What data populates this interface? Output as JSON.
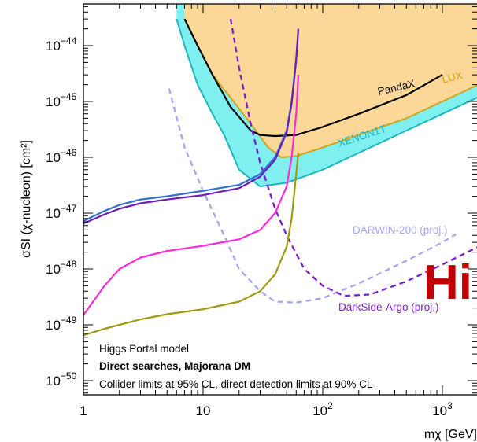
{
  "chart_data": {
    "type": "line",
    "title": "",
    "xlabel": "mχ [GeV]",
    "ylabel": "σSI (χ-nucleon) [cm²]",
    "xscale": "log",
    "yscale": "log",
    "xlim": [
      1,
      2000
    ],
    "ylim": [
      3e-51,
      3e-44
    ],
    "x_ticks": [
      {
        "value": 1,
        "base": "1",
        "exp": ""
      },
      {
        "value": 10,
        "base": "10",
        "exp": ""
      },
      {
        "value": 100,
        "base": "10",
        "exp": "2"
      },
      {
        "value": 1000,
        "base": "10",
        "exp": "3"
      }
    ],
    "y_ticks": [
      {
        "value": 1e-44,
        "base": "10",
        "exp": "−44"
      },
      {
        "value": 1e-45,
        "base": "10",
        "exp": "−45"
      },
      {
        "value": 1e-46,
        "base": "10",
        "exp": "−46"
      },
      {
        "value": 1e-47,
        "base": "10",
        "exp": "−47"
      },
      {
        "value": 1e-48,
        "base": "10",
        "exp": "−48"
      },
      {
        "value": 1e-49,
        "base": "10",
        "exp": "−49"
      },
      {
        "value": 1e-50,
        "base": "10",
        "exp": "−50"
      }
    ],
    "grid": false,
    "legend_lines": [
      "Higgs Portal model",
      "Direct searches, Majorana DM",
      "Collider limits at 95% CL, direct detection limits at 90% CL"
    ],
    "series": [
      {
        "name": "LUX",
        "style": "filled",
        "color": "#d4a21e",
        "fill": "#fbd898",
        "points": [
          [
            7,
            3e-44
          ],
          [
            9,
            1e-44
          ],
          [
            12,
            3e-45
          ],
          [
            18,
            1e-45
          ],
          [
            25,
            4e-46
          ],
          [
            35,
            1.5e-46
          ],
          [
            45,
            1e-46
          ],
          [
            60,
            1.05e-46
          ],
          [
            100,
            1.5e-46
          ],
          [
            200,
            2.5e-46
          ],
          [
            500,
            5e-46
          ],
          [
            1000,
            1e-45
          ],
          [
            2000,
            2e-45
          ]
        ]
      },
      {
        "name": "XENON1T",
        "style": "filled",
        "color": "#1bb7c0",
        "fill": "#7ff0ef",
        "points": [
          [
            6,
            3e-44
          ],
          [
            7,
            1e-44
          ],
          [
            9,
            2e-45
          ],
          [
            12,
            6e-46
          ],
          [
            15,
            2.5e-46
          ],
          [
            20,
            6e-47
          ],
          [
            30,
            3e-47
          ],
          [
            50,
            3.5e-47
          ],
          [
            100,
            6e-47
          ],
          [
            200,
            1.2e-46
          ],
          [
            500,
            3e-46
          ],
          [
            1000,
            6e-46
          ],
          [
            2000,
            1.2e-45
          ]
        ]
      },
      {
        "name": "PandaX",
        "style": "solid",
        "color": "#000000",
        "points": [
          [
            7,
            3e-44
          ],
          [
            9,
            1e-44
          ],
          [
            12,
            3e-45
          ],
          [
            17,
            8e-46
          ],
          [
            25,
            3e-46
          ],
          [
            30,
            2.5e-46
          ],
          [
            40,
            2.4e-46
          ],
          [
            60,
            2.5e-46
          ],
          [
            100,
            3.5e-46
          ],
          [
            200,
            6e-46
          ],
          [
            500,
            1.3e-45
          ],
          [
            1000,
            3e-45
          ]
        ]
      },
      {
        "name": "DARWIN-200 (proj.)",
        "style": "dashed",
        "color": "#a6a6ee",
        "points": [
          [
            5.2,
            1.7e-45
          ],
          [
            7,
            1.5e-46
          ],
          [
            10,
            2.5e-47
          ],
          [
            15,
            4e-48
          ],
          [
            20,
            1e-48
          ],
          [
            30,
            4e-49
          ],
          [
            40,
            2.6e-49
          ],
          [
            60,
            2.5e-49
          ],
          [
            100,
            3e-49
          ],
          [
            200,
            5.5e-49
          ],
          [
            500,
            1.4e-48
          ],
          [
            1000,
            3e-48
          ],
          [
            1300,
            4.2e-48
          ]
        ]
      },
      {
        "name": "DarkSide-Argo (proj.)",
        "style": "dashed",
        "color": "#7a1fc8",
        "points": [
          [
            17,
            3e-44
          ],
          [
            20,
            4e-45
          ],
          [
            25,
            4e-46
          ],
          [
            30,
            8e-47
          ],
          [
            40,
            1.2e-47
          ],
          [
            50,
            4e-48
          ],
          [
            70,
            1e-48
          ],
          [
            100,
            5e-49
          ],
          [
            150,
            3.3e-49
          ],
          [
            250,
            3.5e-49
          ],
          [
            500,
            6e-49
          ],
          [
            1000,
            1.2e-48
          ],
          [
            2000,
            2.5e-48
          ]
        ]
      },
      {
        "name": "",
        "style": "solid",
        "color": "#2f6fd0",
        "points": [
          [
            1,
            7.2e-48
          ],
          [
            1.5,
            1.1e-47
          ],
          [
            2,
            1.4e-47
          ],
          [
            3,
            1.75e-47
          ],
          [
            5,
            2e-47
          ],
          [
            10,
            2.5e-47
          ],
          [
            20,
            3.2e-47
          ],
          [
            30,
            5e-47
          ],
          [
            40,
            1e-46
          ],
          [
            50,
            3e-46
          ],
          [
            55,
            1e-45
          ],
          [
            60,
            6e-45
          ],
          [
            62.5,
            2e-44
          ]
        ]
      },
      {
        "name": "",
        "style": "solid",
        "color": "#6a1fb6",
        "points": [
          [
            1,
            6.5e-48
          ],
          [
            1.5,
            9.5e-48
          ],
          [
            2,
            1.2e-47
          ],
          [
            3,
            1.5e-47
          ],
          [
            5,
            1.75e-47
          ],
          [
            10,
            2.1e-47
          ],
          [
            20,
            2.8e-47
          ],
          [
            30,
            4.5e-47
          ],
          [
            40,
            9e-47
          ],
          [
            50,
            2.8e-46
          ],
          [
            55,
            9e-46
          ],
          [
            60,
            5.5e-45
          ],
          [
            62.5,
            2e-44
          ]
        ]
      },
      {
        "name": "",
        "style": "solid",
        "color": "#ff2ad8",
        "points": [
          [
            1,
            1.5e-49
          ],
          [
            1.5,
            5e-49
          ],
          [
            2,
            1e-48
          ],
          [
            3,
            1.6e-48
          ],
          [
            5,
            2.1e-48
          ],
          [
            10,
            2.6e-48
          ],
          [
            20,
            3.4e-48
          ],
          [
            30,
            5e-48
          ],
          [
            40,
            1e-47
          ],
          [
            50,
            3e-47
          ],
          [
            55,
            1e-46
          ],
          [
            60,
            6e-46
          ],
          [
            62.5,
            3e-45
          ]
        ]
      },
      {
        "name": "",
        "style": "solid",
        "color": "#a09a10",
        "points": [
          [
            1,
            6.5e-50
          ],
          [
            1.5,
            8.5e-50
          ],
          [
            2,
            1e-49
          ],
          [
            3,
            1.25e-49
          ],
          [
            5,
            1.55e-49
          ],
          [
            10,
            1.9e-49
          ],
          [
            20,
            2.6e-49
          ],
          [
            30,
            4e-49
          ],
          [
            40,
            8e-49
          ],
          [
            50,
            2.5e-48
          ],
          [
            55,
            8e-48
          ],
          [
            60,
            5e-47
          ],
          [
            62.5,
            1.2e-46
          ]
        ]
      }
    ],
    "labels": [
      {
        "text": "PandaX",
        "color": "#000000"
      },
      {
        "text": "LUX",
        "color": "#d4a21e"
      },
      {
        "text": "XENON1T",
        "color": "#1bb7c0"
      },
      {
        "text": "DARWIN-200 (proj.)",
        "color": "#a6a6ee"
      },
      {
        "text": "DarkSide-Argo (proj.)",
        "color": "#7a1fc8"
      }
    ],
    "overlay_text": "Hi"
  }
}
